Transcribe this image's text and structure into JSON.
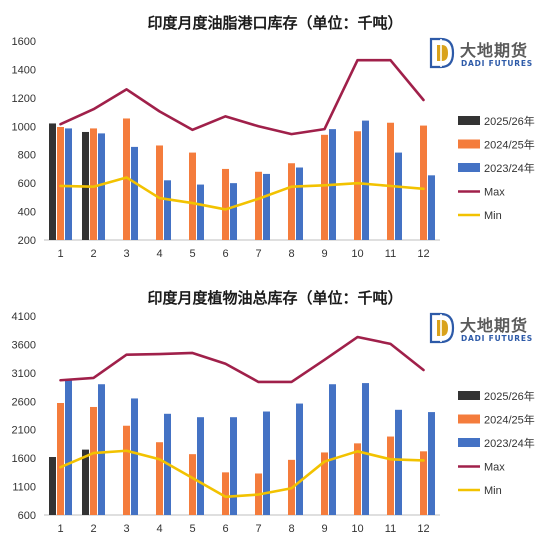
{
  "logo": {
    "cn": "大地期货",
    "en": "DADI FUTURES"
  },
  "chart_data": [
    {
      "type": "bar",
      "title": "印度月度油脂港口库存（单位：千吨）",
      "categories": [
        "1",
        "2",
        "3",
        "4",
        "5",
        "6",
        "7",
        "8",
        "9",
        "10",
        "11",
        "12"
      ],
      "ylim": [
        200,
        1600
      ],
      "yticks": [
        200,
        400,
        600,
        800,
        1000,
        1200,
        1400,
        1600
      ],
      "ytick_labels": [
        "200",
        "400",
        "600",
        "800",
        "1000",
        "1200",
        "1400",
        "1600"
      ],
      "grid": false,
      "legend_position": "right",
      "series": [
        {
          "name": "2025/26年",
          "kind": "bar",
          "color": "#333333",
          "values": [
            1020,
            960,
            null,
            null,
            null,
            null,
            null,
            null,
            null,
            null,
            null,
            null
          ]
        },
        {
          "name": "2024/25年",
          "kind": "bar",
          "color": "#f47c3c",
          "values": [
            995,
            985,
            1055,
            865,
            815,
            700,
            680,
            740,
            940,
            965,
            1025,
            1005
          ]
        },
        {
          "name": "2023/24年",
          "kind": "bar",
          "color": "#4472c4",
          "values": [
            985,
            950,
            855,
            620,
            590,
            600,
            665,
            710,
            980,
            1040,
            815,
            655
          ]
        },
        {
          "name": "Max",
          "kind": "line",
          "color": "#a0204a",
          "values": [
            1015,
            1120,
            1260,
            1105,
            975,
            1070,
            1000,
            945,
            980,
            1465,
            1465,
            1185
          ]
        },
        {
          "name": "Min",
          "kind": "line",
          "color": "#f2c200",
          "values": [
            580,
            575,
            640,
            495,
            460,
            415,
            490,
            575,
            585,
            600,
            580,
            560
          ]
        }
      ]
    },
    {
      "type": "bar",
      "title": "印度月度植物油总库存（单位：千吨）",
      "categories": [
        "1",
        "2",
        "3",
        "4",
        "5",
        "6",
        "7",
        "8",
        "9",
        "10",
        "11",
        "12"
      ],
      "ylim": [
        600,
        4100
      ],
      "yticks": [
        600,
        1100,
        1600,
        2100,
        2600,
        3100,
        3600,
        4100
      ],
      "ytick_labels": [
        "600",
        "1100",
        "1600",
        "2100",
        "2600",
        "3100",
        "3600",
        "4100"
      ],
      "grid": false,
      "legend_position": "right",
      "series": [
        {
          "name": "2025/26年",
          "kind": "bar",
          "color": "#333333",
          "values": [
            1620,
            1750,
            null,
            null,
            null,
            null,
            null,
            null,
            null,
            null,
            null,
            null
          ]
        },
        {
          "name": "2024/25年",
          "kind": "bar",
          "color": "#f47c3c",
          "values": [
            2570,
            2500,
            2170,
            1880,
            1670,
            1350,
            1330,
            1570,
            1700,
            1860,
            1980,
            1720
          ]
        },
        {
          "name": "2023/24年",
          "kind": "bar",
          "color": "#4472c4",
          "values": [
            2970,
            2900,
            2650,
            2380,
            2320,
            2320,
            2420,
            2560,
            2900,
            2920,
            2450,
            2410
          ]
        },
        {
          "name": "Max",
          "kind": "line",
          "color": "#a0204a",
          "values": [
            2970,
            3010,
            3420,
            3430,
            3450,
            3260,
            2940,
            2940,
            3330,
            3730,
            3610,
            3150
          ]
        },
        {
          "name": "Min",
          "kind": "line",
          "color": "#f2c200",
          "values": [
            1440,
            1690,
            1730,
            1580,
            1250,
            920,
            960,
            1070,
            1540,
            1720,
            1580,
            1560
          ]
        }
      ]
    }
  ]
}
